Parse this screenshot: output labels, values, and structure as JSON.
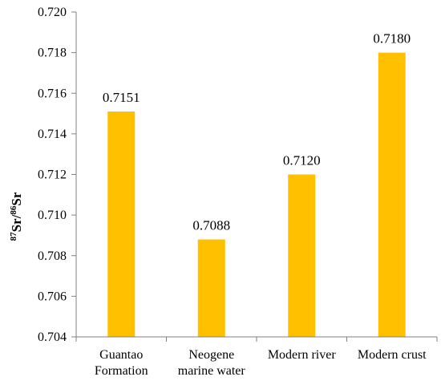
{
  "chart_data": {
    "type": "bar",
    "categories": [
      [
        "Guantao",
        "Formation"
      ],
      [
        "Neogene",
        "marine water"
      ],
      [
        "Modern river"
      ],
      [
        "Modern crust"
      ]
    ],
    "values": [
      0.7151,
      0.7088,
      0.712,
      0.718
    ],
    "data_labels": [
      "0.7151",
      "0.7088",
      "0.7120",
      "0.7180"
    ],
    "ylabel": {
      "sup1": "87",
      "base1": "Sr/",
      "sup2": "86",
      "base2": "Sr"
    },
    "ylim": [
      0.704,
      0.72
    ],
    "yticks": [
      "0.704",
      "0.706",
      "0.708",
      "0.710",
      "0.712",
      "0.714",
      "0.716",
      "0.718",
      "0.720"
    ],
    "bar_color": "#FFC000",
    "grid": false,
    "legend": "none"
  }
}
